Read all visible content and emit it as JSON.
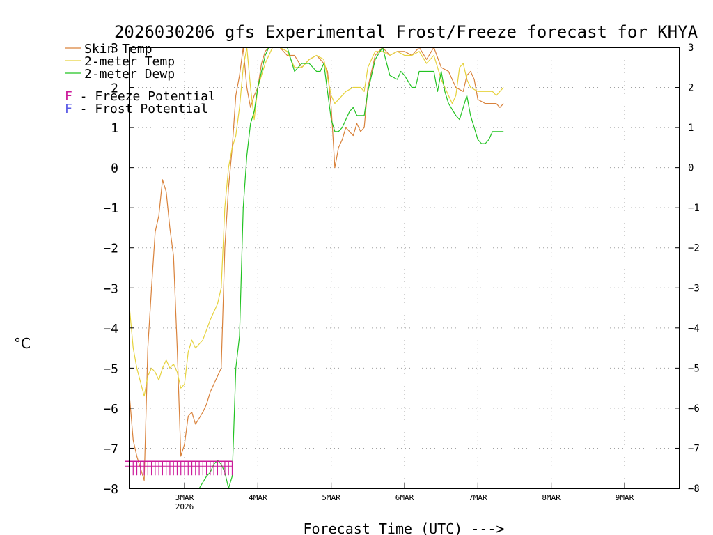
{
  "chart_data": {
    "type": "line",
    "title": "2026030206 gfs Experimental Frost/Freeze forecast for KHYA",
    "ylabel": "°C",
    "xlabel": "Forecast Time (UTC) --->",
    "ylim": [
      -8,
      3
    ],
    "xlim_days": [
      -0.75,
      6.75
    ],
    "yticks": [
      -8,
      -7,
      -6,
      -5,
      -4,
      -3,
      -2,
      -1,
      0,
      1,
      2,
      3
    ],
    "ytick_labels_left": [
      "−8",
      "−7",
      "−6",
      "−5",
      "−4",
      "−3",
      "−2",
      "−1",
      "0",
      "1",
      "2",
      "3"
    ],
    "ytick_labels_right": [
      "−8",
      "−7",
      "−6",
      "−5",
      "−4",
      "−3",
      "−2",
      "−1",
      "0",
      "1",
      "2",
      "3"
    ],
    "xticks": [
      {
        "day": 0,
        "label": "3MAR",
        "sublabel": "2026"
      },
      {
        "day": 1,
        "label": "4MAR",
        "sublabel": ""
      },
      {
        "day": 2,
        "label": "5MAR",
        "sublabel": ""
      },
      {
        "day": 3,
        "label": "6MAR",
        "sublabel": ""
      },
      {
        "day": 4,
        "label": "7MAR",
        "sublabel": ""
      },
      {
        "day": 5,
        "label": "8MAR",
        "sublabel": ""
      },
      {
        "day": 6,
        "label": "9MAR",
        "sublabel": ""
      }
    ],
    "grid": true,
    "legend": [
      {
        "label": "Skin Temp",
        "color": "#d9823b",
        "marker": "line"
      },
      {
        "label": "2-meter Temp",
        "color": "#e6d23c",
        "marker": "line"
      },
      {
        "label": "2-meter Dewp",
        "color": "#22c322",
        "marker": "line"
      },
      {
        "label": "F - Freeze Potential",
        "color": "#cc1a9a",
        "marker": "F"
      },
      {
        "label": "F - Frost Potential",
        "color": "#5a5ae6",
        "marker": "F"
      }
    ],
    "series": [
      {
        "name": "Skin Temp",
        "color": "#d9823b",
        "points": [
          [
            -0.75,
            -5.7
          ],
          [
            -0.7,
            -6.8
          ],
          [
            -0.65,
            -7.2
          ],
          [
            -0.6,
            -7.5
          ],
          [
            -0.55,
            -7.8
          ],
          [
            -0.5,
            -4.5
          ],
          [
            -0.45,
            -3.0
          ],
          [
            -0.4,
            -1.6
          ],
          [
            -0.35,
            -1.2
          ],
          [
            -0.3,
            -0.3
          ],
          [
            -0.25,
            -0.6
          ],
          [
            -0.2,
            -1.5
          ],
          [
            -0.15,
            -2.2
          ],
          [
            -0.1,
            -4.5
          ],
          [
            -0.05,
            -7.2
          ],
          [
            0.0,
            -6.9
          ],
          [
            0.05,
            -6.2
          ],
          [
            0.1,
            -6.1
          ],
          [
            0.15,
            -6.4
          ],
          [
            0.25,
            -6.1
          ],
          [
            0.3,
            -5.9
          ],
          [
            0.35,
            -5.6
          ],
          [
            0.45,
            -5.2
          ],
          [
            0.5,
            -5.0
          ],
          [
            0.55,
            -2.0
          ],
          [
            0.6,
            -0.5
          ],
          [
            0.65,
            0.5
          ],
          [
            0.7,
            1.8
          ],
          [
            0.75,
            2.3
          ],
          [
            0.8,
            3.0
          ],
          [
            0.85,
            2.0
          ],
          [
            0.9,
            1.5
          ],
          [
            0.95,
            1.8
          ],
          [
            1.0,
            2.0
          ],
          [
            1.05,
            2.6
          ],
          [
            1.1,
            2.9
          ],
          [
            1.15,
            3.0
          ],
          [
            1.2,
            3.0
          ],
          [
            1.3,
            3.0
          ],
          [
            1.4,
            2.8
          ],
          [
            1.5,
            2.8
          ],
          [
            1.6,
            2.5
          ],
          [
            1.7,
            2.7
          ],
          [
            1.8,
            2.8
          ],
          [
            1.9,
            2.6
          ],
          [
            1.95,
            2.4
          ],
          [
            2.0,
            1.5
          ],
          [
            2.05,
            0.0
          ],
          [
            2.1,
            0.5
          ],
          [
            2.15,
            0.7
          ],
          [
            2.2,
            1.0
          ],
          [
            2.25,
            0.9
          ],
          [
            2.3,
            0.8
          ],
          [
            2.35,
            1.1
          ],
          [
            2.4,
            0.9
          ],
          [
            2.45,
            1.0
          ],
          [
            2.5,
            2.0
          ],
          [
            2.6,
            2.8
          ],
          [
            2.7,
            3.0
          ],
          [
            2.8,
            2.8
          ],
          [
            2.9,
            2.9
          ],
          [
            3.0,
            2.9
          ],
          [
            3.1,
            2.8
          ],
          [
            3.2,
            3.0
          ],
          [
            3.3,
            2.7
          ],
          [
            3.4,
            3.0
          ],
          [
            3.5,
            2.5
          ],
          [
            3.6,
            2.4
          ],
          [
            3.7,
            2.0
          ],
          [
            3.8,
            1.9
          ],
          [
            3.85,
            2.3
          ],
          [
            3.9,
            2.4
          ],
          [
            3.95,
            2.2
          ],
          [
            4.0,
            1.7
          ],
          [
            4.1,
            1.6
          ],
          [
            4.2,
            1.6
          ],
          [
            4.25,
            1.6
          ],
          [
            4.3,
            1.5
          ],
          [
            4.35,
            1.6
          ]
        ]
      },
      {
        "name": "2-meter Temp",
        "color": "#e6d23c",
        "points": [
          [
            -0.75,
            -3.5
          ],
          [
            -0.7,
            -4.5
          ],
          [
            -0.65,
            -5.0
          ],
          [
            -0.55,
            -5.7
          ],
          [
            -0.5,
            -5.2
          ],
          [
            -0.45,
            -5.0
          ],
          [
            -0.4,
            -5.1
          ],
          [
            -0.35,
            -5.3
          ],
          [
            -0.3,
            -5.0
          ],
          [
            -0.25,
            -4.8
          ],
          [
            -0.2,
            -5.0
          ],
          [
            -0.15,
            -4.9
          ],
          [
            -0.1,
            -5.1
          ],
          [
            -0.05,
            -5.5
          ],
          [
            0.0,
            -5.4
          ],
          [
            0.05,
            -4.6
          ],
          [
            0.1,
            -4.3
          ],
          [
            0.15,
            -4.5
          ],
          [
            0.25,
            -4.3
          ],
          [
            0.35,
            -3.8
          ],
          [
            0.45,
            -3.4
          ],
          [
            0.5,
            -3.0
          ],
          [
            0.55,
            -1.0
          ],
          [
            0.6,
            0.0
          ],
          [
            0.65,
            0.5
          ],
          [
            0.7,
            0.8
          ],
          [
            0.75,
            1.5
          ],
          [
            0.8,
            2.5
          ],
          [
            0.85,
            3.0
          ],
          [
            0.9,
            2.0
          ],
          [
            0.95,
            1.2
          ],
          [
            1.0,
            2.0
          ],
          [
            1.1,
            2.6
          ],
          [
            1.2,
            3.0
          ],
          [
            1.3,
            3.0
          ],
          [
            1.4,
            2.9
          ],
          [
            1.5,
            2.5
          ],
          [
            1.6,
            2.5
          ],
          [
            1.7,
            2.7
          ],
          [
            1.8,
            2.8
          ],
          [
            1.9,
            2.7
          ],
          [
            2.0,
            1.8
          ],
          [
            2.05,
            1.6
          ],
          [
            2.1,
            1.7
          ],
          [
            2.2,
            1.9
          ],
          [
            2.3,
            2.0
          ],
          [
            2.4,
            2.0
          ],
          [
            2.45,
            1.9
          ],
          [
            2.5,
            2.5
          ],
          [
            2.6,
            2.9
          ],
          [
            2.7,
            2.9
          ],
          [
            2.8,
            2.8
          ],
          [
            2.9,
            2.9
          ],
          [
            3.0,
            2.8
          ],
          [
            3.1,
            2.8
          ],
          [
            3.2,
            2.9
          ],
          [
            3.3,
            2.6
          ],
          [
            3.4,
            2.8
          ],
          [
            3.5,
            2.2
          ],
          [
            3.6,
            1.8
          ],
          [
            3.65,
            1.6
          ],
          [
            3.7,
            1.8
          ],
          [
            3.75,
            2.5
          ],
          [
            3.8,
            2.6
          ],
          [
            3.85,
            2.2
          ],
          [
            3.9,
            2.0
          ],
          [
            4.0,
            1.9
          ],
          [
            4.1,
            1.9
          ],
          [
            4.2,
            1.9
          ],
          [
            4.25,
            1.8
          ],
          [
            4.3,
            1.9
          ],
          [
            4.35,
            2.0
          ]
        ]
      },
      {
        "name": "2-meter Dewp",
        "color": "#22c322",
        "points": [
          [
            0.2,
            -8.0
          ],
          [
            0.3,
            -7.7
          ],
          [
            0.35,
            -7.6
          ],
          [
            0.4,
            -7.4
          ],
          [
            0.45,
            -7.3
          ],
          [
            0.5,
            -7.4
          ],
          [
            0.55,
            -7.6
          ],
          [
            0.6,
            -8.0
          ],
          [
            0.65,
            -7.7
          ],
          [
            0.7,
            -5.0
          ],
          [
            0.75,
            -4.2
          ],
          [
            0.8,
            -1.0
          ],
          [
            0.85,
            0.3
          ],
          [
            0.9,
            1.1
          ],
          [
            0.95,
            1.4
          ],
          [
            1.0,
            2.0
          ],
          [
            1.05,
            2.4
          ],
          [
            1.1,
            2.8
          ],
          [
            1.15,
            3.0
          ],
          [
            1.2,
            3.0
          ],
          [
            1.3,
            3.0
          ],
          [
            1.4,
            3.0
          ],
          [
            1.5,
            2.4
          ],
          [
            1.6,
            2.6
          ],
          [
            1.7,
            2.6
          ],
          [
            1.8,
            2.4
          ],
          [
            1.85,
            2.4
          ],
          [
            1.9,
            2.6
          ],
          [
            2.0,
            1.2
          ],
          [
            2.05,
            0.9
          ],
          [
            2.1,
            0.9
          ],
          [
            2.15,
            1.0
          ],
          [
            2.2,
            1.2
          ],
          [
            2.25,
            1.4
          ],
          [
            2.3,
            1.5
          ],
          [
            2.35,
            1.3
          ],
          [
            2.4,
            1.3
          ],
          [
            2.45,
            1.3
          ],
          [
            2.5,
            1.9
          ],
          [
            2.6,
            2.7
          ],
          [
            2.7,
            3.0
          ],
          [
            2.8,
            2.3
          ],
          [
            2.9,
            2.2
          ],
          [
            2.95,
            2.4
          ],
          [
            3.0,
            2.3
          ],
          [
            3.1,
            2.0
          ],
          [
            3.15,
            2.0
          ],
          [
            3.2,
            2.4
          ],
          [
            3.3,
            2.4
          ],
          [
            3.4,
            2.4
          ],
          [
            3.45,
            1.9
          ],
          [
            3.5,
            2.4
          ],
          [
            3.55,
            1.9
          ],
          [
            3.6,
            1.6
          ],
          [
            3.7,
            1.3
          ],
          [
            3.75,
            1.2
          ],
          [
            3.8,
            1.5
          ],
          [
            3.85,
            1.8
          ],
          [
            3.9,
            1.3
          ],
          [
            3.95,
            1.0
          ],
          [
            4.0,
            0.7
          ],
          [
            4.05,
            0.6
          ],
          [
            4.1,
            0.6
          ],
          [
            4.15,
            0.7
          ],
          [
            4.2,
            0.9
          ],
          [
            4.3,
            0.9
          ],
          [
            4.35,
            0.9
          ]
        ]
      }
    ],
    "freeze_potential": {
      "label": "F",
      "color": "#cc1a9a",
      "value": -7.5,
      "day_range": [
        -0.75,
        0.65
      ]
    }
  }
}
